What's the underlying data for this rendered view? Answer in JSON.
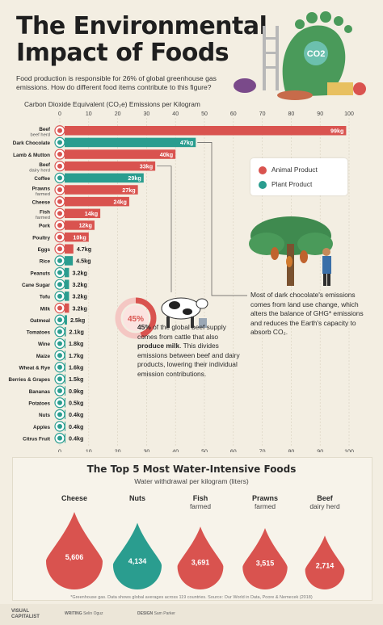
{
  "header": {
    "title_line1": "The Environmental",
    "title_line2": "Impact of Foods",
    "subtitle": "Food production is responsible for 26% of global greenhouse gas emissions. How do different food items contribute to this figure?",
    "hero_label": "CO2"
  },
  "chart_data": {
    "type": "bar",
    "orientation": "horizontal",
    "title": "Carbon Dioxide Equivalent (CO₂e) Emissions per Kilogram",
    "xlim": [
      0,
      100
    ],
    "ticks": [
      0,
      10,
      20,
      30,
      40,
      50,
      60,
      70,
      80,
      90,
      100
    ],
    "grid": true,
    "legend_placement": "right",
    "colors": {
      "animal": "#d9534f",
      "plant": "#2a9d8f",
      "track": "#e8e1d1"
    },
    "items": [
      {
        "name": "Beef",
        "sub": "beef herd",
        "value": 99,
        "label": "99kg",
        "kind": "animal"
      },
      {
        "name": "Dark Chocolate",
        "sub": "",
        "value": 47,
        "label": "47kg",
        "kind": "plant"
      },
      {
        "name": "Lamb & Mutton",
        "sub": "",
        "value": 40,
        "label": "40kg",
        "kind": "animal"
      },
      {
        "name": "Beef",
        "sub": "dairy herd",
        "value": 33,
        "label": "33kg",
        "kind": "animal"
      },
      {
        "name": "Coffee",
        "sub": "",
        "value": 29,
        "label": "29kg",
        "kind": "plant"
      },
      {
        "name": "Prawns",
        "sub": "farmed",
        "value": 27,
        "label": "27kg",
        "kind": "animal"
      },
      {
        "name": "Cheese",
        "sub": "",
        "value": 24,
        "label": "24kg",
        "kind": "animal"
      },
      {
        "name": "Fish",
        "sub": "farmed",
        "value": 14,
        "label": "14kg",
        "kind": "animal"
      },
      {
        "name": "Pork",
        "sub": "",
        "value": 12,
        "label": "12kg",
        "kind": "animal"
      },
      {
        "name": "Poultry",
        "sub": "",
        "value": 10,
        "label": "10kg",
        "kind": "animal"
      },
      {
        "name": "Eggs",
        "sub": "",
        "value": 4.7,
        "label": "4.7kg",
        "kind": "animal"
      },
      {
        "name": "Rice",
        "sub": "",
        "value": 4.5,
        "label": "4.5kg",
        "kind": "plant"
      },
      {
        "name": "Peanuts",
        "sub": "",
        "value": 3.2,
        "label": "3.2kg",
        "kind": "plant"
      },
      {
        "name": "Cane Sugar",
        "sub": "",
        "value": 3.2,
        "label": "3.2kg",
        "kind": "plant"
      },
      {
        "name": "Tofu",
        "sub": "",
        "value": 3.2,
        "label": "3.2kg",
        "kind": "plant"
      },
      {
        "name": "Milk",
        "sub": "",
        "value": 3.2,
        "label": "3.2kg",
        "kind": "animal"
      },
      {
        "name": "Oatmeal",
        "sub": "",
        "value": 2.5,
        "label": "2.5kg",
        "kind": "plant"
      },
      {
        "name": "Tomatoes",
        "sub": "",
        "value": 2.1,
        "label": "2.1kg",
        "kind": "plant"
      },
      {
        "name": "Wine",
        "sub": "",
        "value": 1.8,
        "label": "1.8kg",
        "kind": "plant"
      },
      {
        "name": "Maize",
        "sub": "",
        "value": 1.7,
        "label": "1.7kg",
        "kind": "plant"
      },
      {
        "name": "Wheat & Rye",
        "sub": "",
        "value": 1.6,
        "label": "1.6kg",
        "kind": "plant"
      },
      {
        "name": "Berries & Grapes",
        "sub": "",
        "value": 1.5,
        "label": "1.5kg",
        "kind": "plant"
      },
      {
        "name": "Bananas",
        "sub": "",
        "value": 0.9,
        "label": "0.9kg",
        "kind": "plant"
      },
      {
        "name": "Potatoes",
        "sub": "",
        "value": 0.5,
        "label": "0.5kg",
        "kind": "plant"
      },
      {
        "name": "Nuts",
        "sub": "",
        "value": 0.4,
        "label": "0.4kg",
        "kind": "plant"
      },
      {
        "name": "Apples",
        "sub": "",
        "value": 0.4,
        "label": "0.4kg",
        "kind": "plant"
      },
      {
        "name": "Citrus Fruit",
        "sub": "",
        "value": 0.4,
        "label": "0.4kg",
        "kind": "plant"
      }
    ]
  },
  "legend": {
    "animal": "Animal Product",
    "plant": "Plant Product"
  },
  "notes": {
    "beef_pct": "45%",
    "beef_text_1": "45%",
    "beef_text_2": " of the global beef supply comes from cattle that also ",
    "beef_text_3": "produce milk",
    "beef_text_4": ". This divides emissions between beef and dairy products, lowering their individual emission contributions.",
    "beef_pct_value": 0.45,
    "chocolate_text": "Most of dark chocolate's emissions comes from land use change, which alters the balance of GHG* emissions and reduces the Earth's capacity to absorb CO₂."
  },
  "water": {
    "title": "The Top 5 Most Water-Intensive Foods",
    "subtitle": "Water withdrawal per kilogram (liters)",
    "items": [
      {
        "name": "Cheese",
        "sub": "",
        "value": 5606,
        "label": "5,606"
      },
      {
        "name": "Nuts",
        "sub": "",
        "value": 4134,
        "label": "4,134"
      },
      {
        "name": "Fish",
        "sub": "farmed",
        "value": 3691,
        "label": "3,691"
      },
      {
        "name": "Prawns",
        "sub": "farmed",
        "value": 3515,
        "label": "3,515"
      },
      {
        "name": "Beef",
        "sub": "dairy herd",
        "value": 2714,
        "label": "2,714"
      }
    ],
    "colors": [
      "#d9534f",
      "#2a9d8f",
      "#d9534f",
      "#d9534f",
      "#d9534f"
    ]
  },
  "footer": {
    "note": "*Greenhouse gas. Data shows global averages across 119 countries. Source: Our World in Data, Poore & Nemecek (2018)",
    "logo_line1": "VISUAL",
    "logo_line2": "CAPITALIST",
    "writing_label": "WRITING",
    "writing_name": "Selin Oguz",
    "design_label": "DESIGN",
    "design_name": "Sam Parker"
  }
}
